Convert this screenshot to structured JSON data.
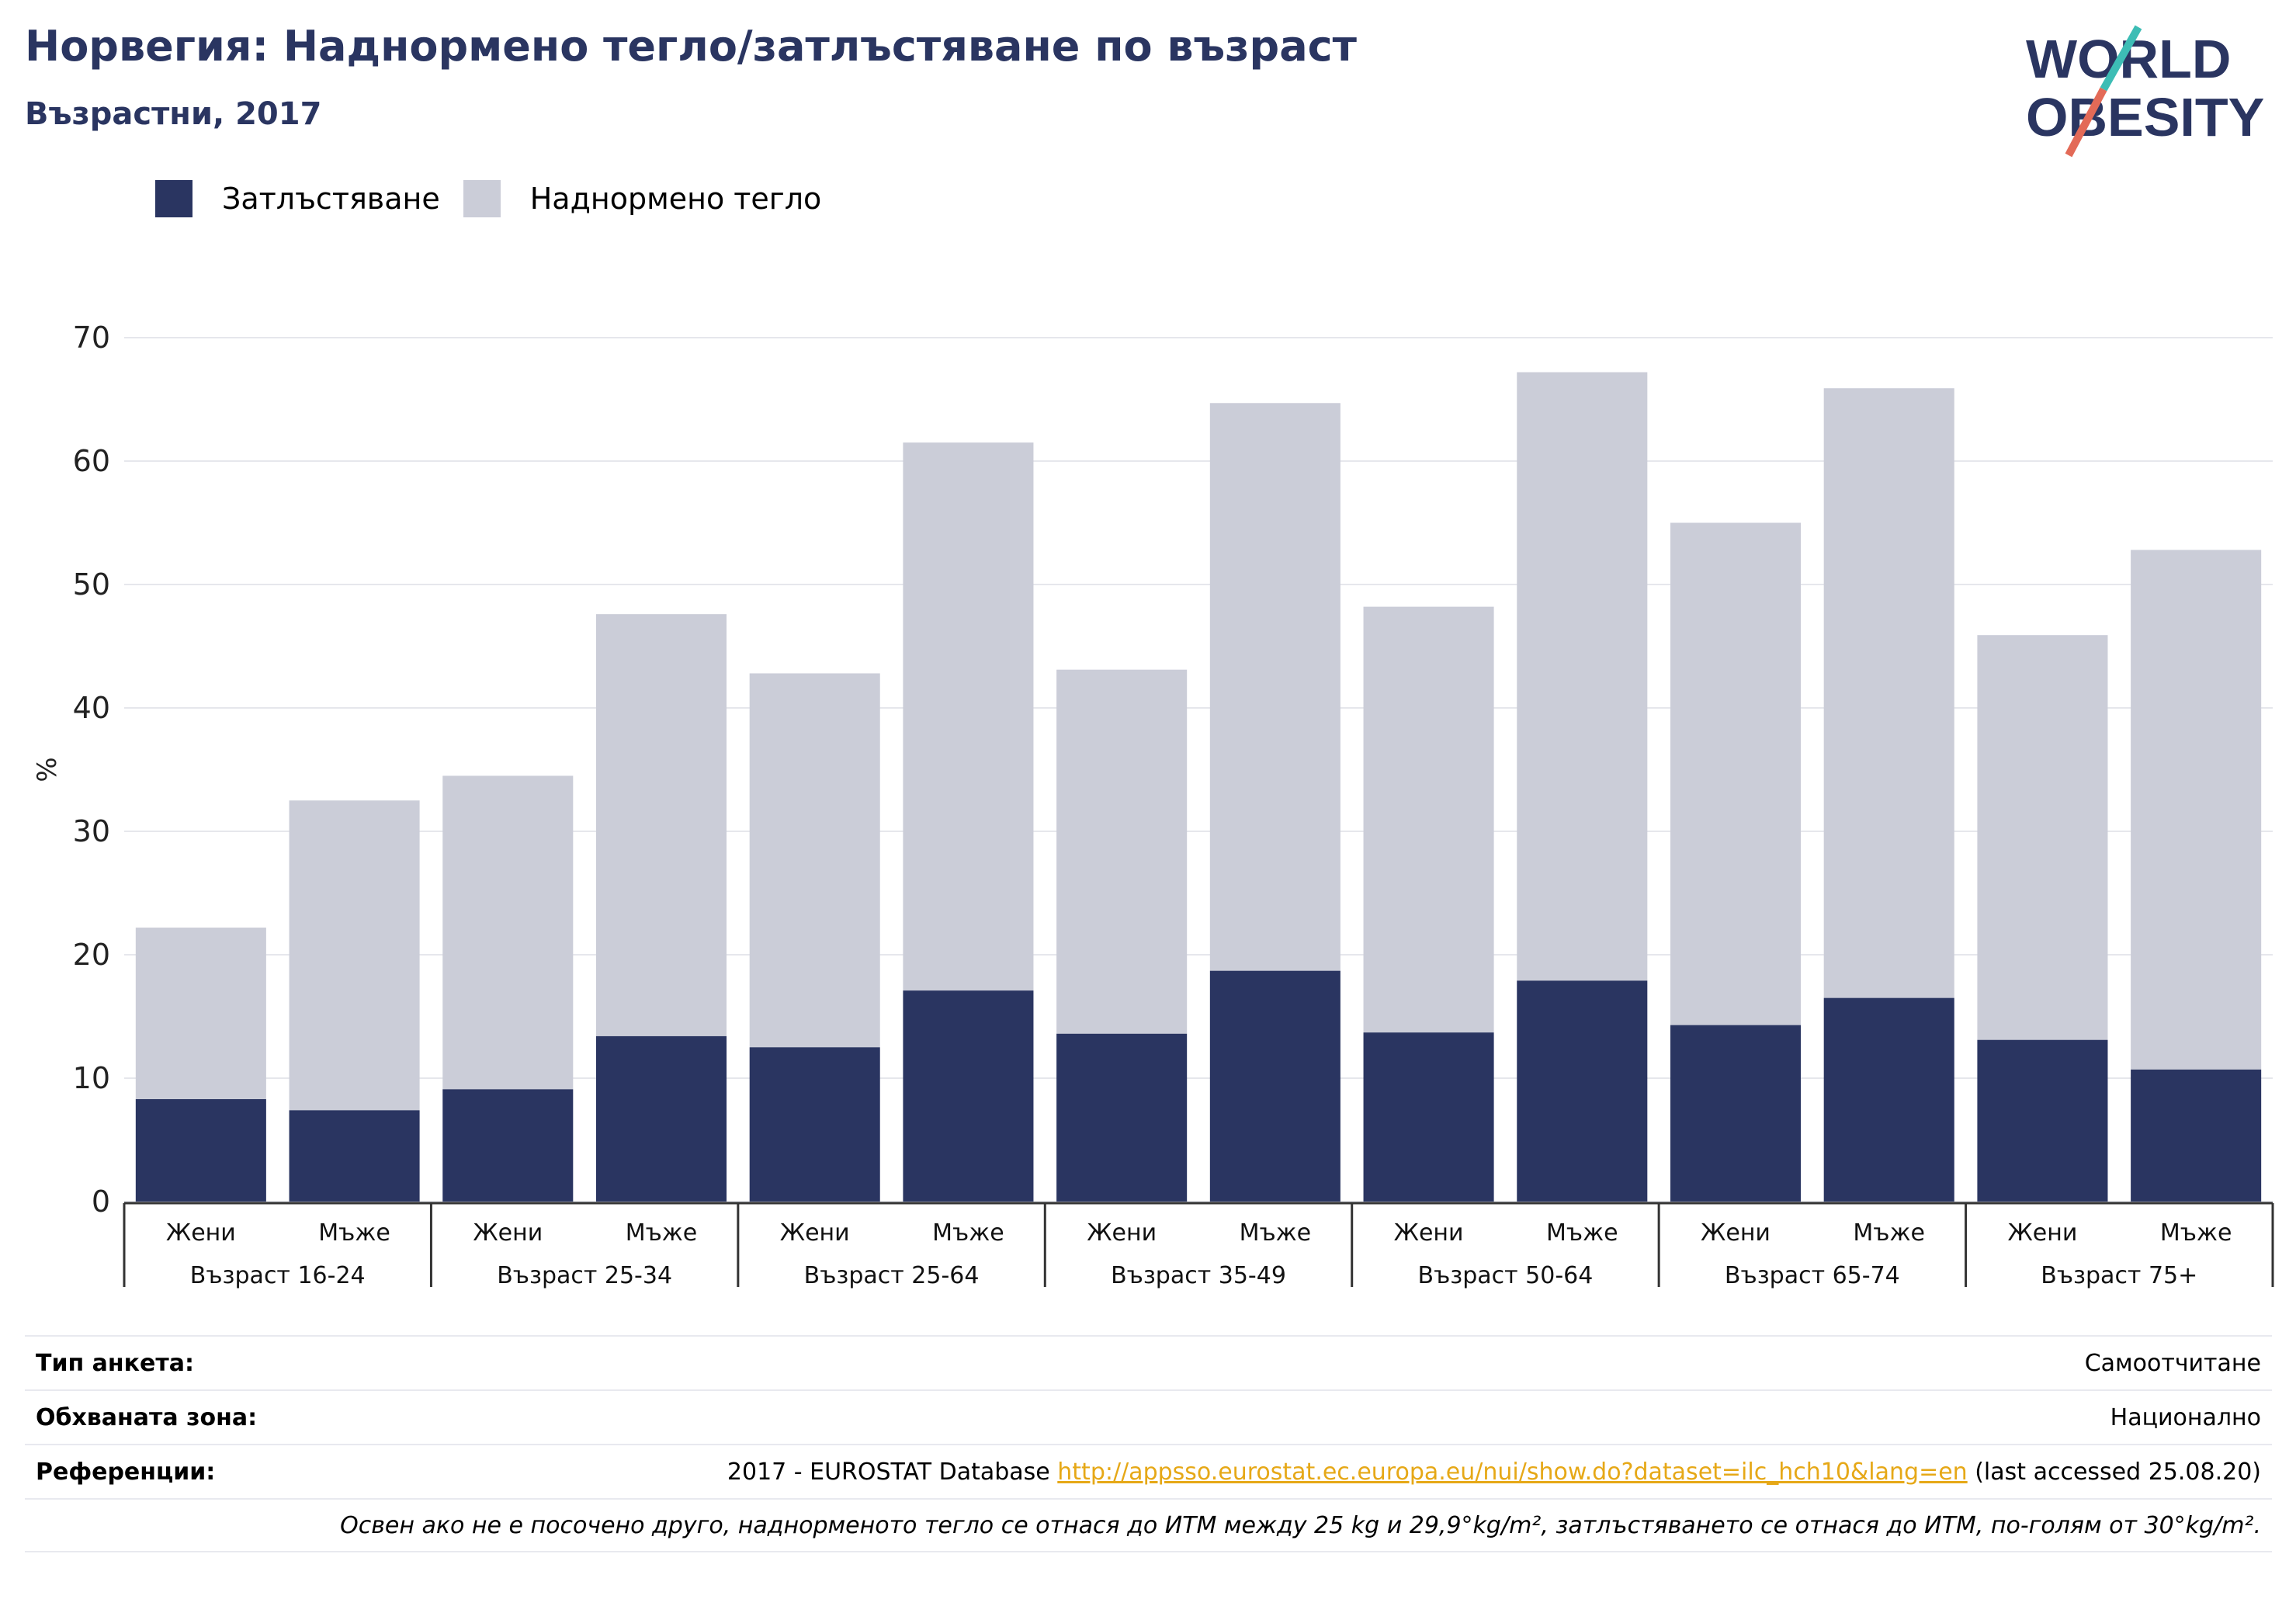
{
  "header": {
    "title": "Норвегия: Наднормено тегло/затлъстяване по възраст",
    "subtitle": "Възрастни, 2017"
  },
  "logo": {
    "line1": "WORLD",
    "line2": "OBESITY"
  },
  "colors": {
    "obesity": "#2a3561",
    "overweight": "#cbcdd8",
    "title": "#2a3561",
    "link": "#e6a817"
  },
  "legend": {
    "obesity": "Затлъстяване",
    "overweight": "Наднормено тегло"
  },
  "chart_data": {
    "type": "bar",
    "stacked": true,
    "ylabel": "%",
    "ylim": [
      0,
      70
    ],
    "yticks": [
      0,
      10,
      20,
      30,
      40,
      50,
      60,
      70
    ],
    "grid": true,
    "legend_position": "top-left",
    "groups": [
      "Възраст 16-24",
      "Възраст 25-34",
      "Възраст 25-64",
      "Възраст 35-49",
      "Възраст 50-64",
      "Възраст 65-74",
      "Възраст 75+"
    ],
    "categories": [
      "Жени",
      "Мъже",
      "Жени",
      "Мъже",
      "Жени",
      "Мъже",
      "Жени",
      "Мъже",
      "Жени",
      "Мъже",
      "Жени",
      "Мъже",
      "Жени",
      "Мъже"
    ],
    "series": [
      {
        "name": "Затлъстяване",
        "values": [
          8.3,
          7.4,
          9.1,
          13.4,
          12.5,
          17.1,
          13.6,
          18.7,
          13.7,
          17.9,
          14.3,
          16.5,
          13.1,
          10.7
        ]
      },
      {
        "name": "Наднормено тегло",
        "values": [
          13.9,
          25.1,
          25.4,
          34.2,
          30.3,
          44.4,
          29.5,
          46.0,
          34.5,
          49.3,
          40.7,
          49.4,
          32.8,
          42.1
        ]
      }
    ]
  },
  "footer": {
    "survey_label": "Тип анкета:",
    "survey_value": "Самоотчитане",
    "coverage_label": "Обхваната зона:",
    "coverage_value": "Национално",
    "refs_label": "Референции:",
    "refs_prefix": "2017 - EUROSTAT Database ",
    "refs_link": "http://appsso.eurostat.ec.europa.eu/nui/show.do?dataset=ilc_hch10&lang=en",
    "refs_suffix": " (last accessed 25.08.20)",
    "note": "Освен ако не е посочено друго, наднорменото тегло се отнася до ИТМ между 25 kg и 29,9°kg/m², затлъстяването се отнася до ИТМ, по-голям от 30°kg/m²."
  }
}
